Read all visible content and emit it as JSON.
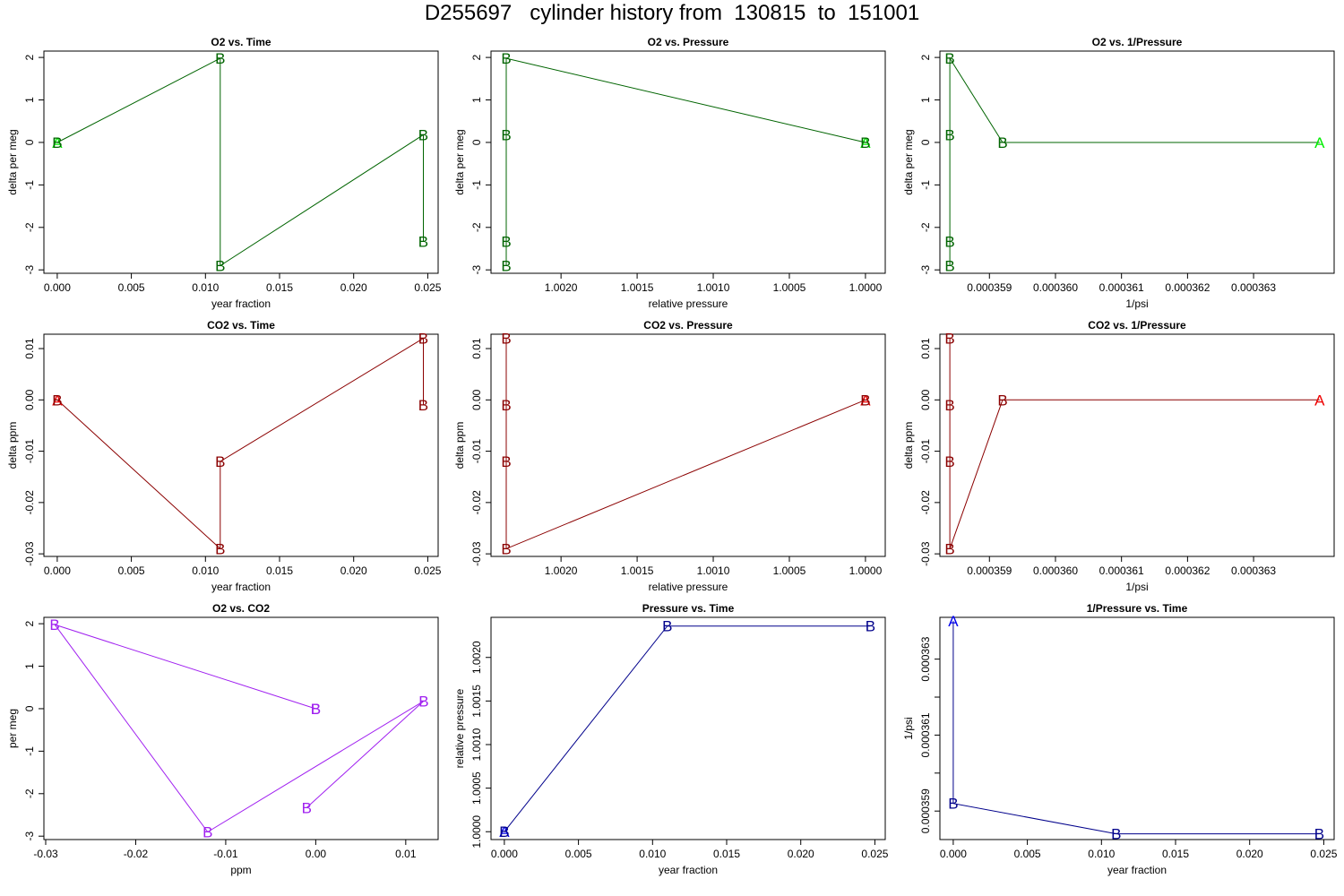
{
  "title": "D255697   cylinder history from  130815  to  151001",
  "colors": {
    "o2": "#006400",
    "o2_first": "#00ee00",
    "co2": "#8b0000",
    "co2_first": "#ee0000",
    "mix": "#a020f0",
    "press": "#00008b",
    "press_first": "#0000ee"
  },
  "chart_data": [
    {
      "type": "line",
      "title": "O2 vs. Time",
      "xlabel": "year fraction",
      "ylabel": "delta per meg",
      "xlim": [
        -0.0009,
        0.0257
      ],
      "ylim": [
        -3.08,
        2.15
      ],
      "xticks": [
        0.0,
        0.005,
        0.01,
        0.015,
        0.02,
        0.025
      ],
      "xticklabels": [
        "0.000",
        "0.005",
        "0.010",
        "0.015",
        "0.020",
        "0.025"
      ],
      "yticks": [
        -3,
        -2,
        -1,
        0,
        1,
        2
      ],
      "yticklabels": [
        "-3",
        "-2",
        "-1",
        "0",
        "1",
        "2"
      ],
      "color": "o2",
      "first_color": "o2_first",
      "points": [
        {
          "x": 0.0,
          "y": 0.0,
          "label": "A"
        },
        {
          "x": 0.0,
          "y": 0.0,
          "label": "B"
        },
        {
          "x": 0.011,
          "y": 1.98,
          "label": "B"
        },
        {
          "x": 0.011,
          "y": -2.9,
          "label": "B"
        },
        {
          "x": 0.0247,
          "y": 0.18,
          "label": "B"
        },
        {
          "x": 0.0247,
          "y": -2.33,
          "label": "B"
        }
      ]
    },
    {
      "type": "line",
      "title": "O2 vs. Pressure",
      "xlabel": "relative pressure",
      "ylabel": "delta per meg",
      "xlim": [
        1.00246,
        0.99987
      ],
      "ylim": [
        -3.08,
        2.15
      ],
      "xticks": [
        1.002,
        1.0015,
        1.001,
        1.0005,
        1.0
      ],
      "xticklabels": [
        "1.0020",
        "1.0015",
        "1.0010",
        "1.0005",
        "1.0000"
      ],
      "yticks": [
        -3,
        -2,
        -1,
        0,
        1,
        2
      ],
      "yticklabels": [
        "-3",
        "-2",
        "-1",
        "0",
        "1",
        "2"
      ],
      "color": "o2",
      "first_color": "o2_first",
      "points": [
        {
          "x": 1.0,
          "y": 0.0,
          "label": "A"
        },
        {
          "x": 1.0,
          "y": 0.0,
          "label": "B"
        },
        {
          "x": 1.00236,
          "y": 1.98,
          "label": "B"
        },
        {
          "x": 1.00236,
          "y": -2.9,
          "label": "B"
        },
        {
          "x": 1.00236,
          "y": 0.18,
          "label": "B"
        },
        {
          "x": 1.00236,
          "y": -2.33,
          "label": "B"
        }
      ]
    },
    {
      "type": "line",
      "title": "O2 vs. 1/Pressure",
      "xlabel": "1/psi",
      "ylabel": "delta per meg",
      "xlim": [
        0.00035825,
        0.00036422
      ],
      "ylim": [
        -3.08,
        2.15
      ],
      "xticks": [
        0.000359,
        0.00036,
        0.000361,
        0.000362,
        0.000363
      ],
      "xticklabels": [
        "0.000359",
        "0.000360",
        "0.000361",
        "0.000362",
        "0.000363"
      ],
      "yticks": [
        -3,
        -2,
        -1,
        0,
        1,
        2
      ],
      "yticklabels": [
        "-3",
        "-2",
        "-1",
        "0",
        "1",
        "2"
      ],
      "color": "o2",
      "first_color": "o2_first",
      "points": [
        {
          "x": 0.000364,
          "y": 0.0,
          "label": "A"
        },
        {
          "x": 0.0003592,
          "y": 0.0,
          "label": "B"
        },
        {
          "x": 0.0003584,
          "y": 1.98,
          "label": "B"
        },
        {
          "x": 0.0003584,
          "y": -2.9,
          "label": "B"
        },
        {
          "x": 0.0003584,
          "y": 0.18,
          "label": "B"
        },
        {
          "x": 0.0003584,
          "y": -2.33,
          "label": "B"
        }
      ]
    },
    {
      "type": "line",
      "title": "CO2 vs. Time",
      "xlabel": "year fraction",
      "ylabel": "delta ppm",
      "xlim": [
        -0.0009,
        0.0257
      ],
      "ylim": [
        -0.0305,
        0.0128
      ],
      "xticks": [
        0.0,
        0.005,
        0.01,
        0.015,
        0.02,
        0.025
      ],
      "xticklabels": [
        "0.000",
        "0.005",
        "0.010",
        "0.015",
        "0.020",
        "0.025"
      ],
      "yticks": [
        -0.03,
        -0.02,
        -0.01,
        0.0,
        0.01
      ],
      "yticklabels": [
        "-0.03",
        "-0.02",
        "-0.01",
        "0.00",
        "0.01"
      ],
      "color": "co2",
      "first_color": "co2_first",
      "points": [
        {
          "x": 0.0,
          "y": 0.0,
          "label": "A"
        },
        {
          "x": 0.0,
          "y": 0.0,
          "label": "B"
        },
        {
          "x": 0.011,
          "y": -0.029,
          "label": "B"
        },
        {
          "x": 0.011,
          "y": -0.012,
          "label": "B"
        },
        {
          "x": 0.0247,
          "y": 0.012,
          "label": "B"
        },
        {
          "x": 0.0247,
          "y": -0.001,
          "label": "B"
        }
      ]
    },
    {
      "type": "line",
      "title": "CO2 vs. Pressure",
      "xlabel": "relative pressure",
      "ylabel": "delta ppm",
      "xlim": [
        1.00246,
        0.99987
      ],
      "ylim": [
        -0.0305,
        0.0128
      ],
      "xticks": [
        1.002,
        1.0015,
        1.001,
        1.0005,
        1.0
      ],
      "xticklabels": [
        "1.0020",
        "1.0015",
        "1.0010",
        "1.0005",
        "1.0000"
      ],
      "yticks": [
        -0.03,
        -0.02,
        -0.01,
        0.0,
        0.01
      ],
      "yticklabels": [
        "-0.03",
        "-0.02",
        "-0.01",
        "0.00",
        "0.01"
      ],
      "color": "co2",
      "first_color": "co2_first",
      "points": [
        {
          "x": 1.0,
          "y": 0.0,
          "label": "A"
        },
        {
          "x": 1.0,
          "y": 0.0,
          "label": "B"
        },
        {
          "x": 1.00236,
          "y": -0.029,
          "label": "B"
        },
        {
          "x": 1.00236,
          "y": -0.012,
          "label": "B"
        },
        {
          "x": 1.00236,
          "y": 0.012,
          "label": "B"
        },
        {
          "x": 1.00236,
          "y": -0.001,
          "label": "B"
        }
      ]
    },
    {
      "type": "line",
      "title": "CO2 vs. 1/Pressure",
      "xlabel": "1/psi",
      "ylabel": "delta ppm",
      "xlim": [
        0.00035825,
        0.00036422
      ],
      "ylim": [
        -0.0305,
        0.0128
      ],
      "xticks": [
        0.000359,
        0.00036,
        0.000361,
        0.000362,
        0.000363
      ],
      "xticklabels": [
        "0.000359",
        "0.000360",
        "0.000361",
        "0.000362",
        "0.000363"
      ],
      "yticks": [
        -0.03,
        -0.02,
        -0.01,
        0.0,
        0.01
      ],
      "yticklabels": [
        "-0.03",
        "-0.02",
        "-0.01",
        "0.00",
        "0.01"
      ],
      "color": "co2",
      "first_color": "co2_first",
      "points": [
        {
          "x": 0.000364,
          "y": 0.0,
          "label": "A"
        },
        {
          "x": 0.0003592,
          "y": 0.0,
          "label": "B"
        },
        {
          "x": 0.0003584,
          "y": -0.029,
          "label": "B"
        },
        {
          "x": 0.0003584,
          "y": -0.012,
          "label": "B"
        },
        {
          "x": 0.0003584,
          "y": 0.012,
          "label": "B"
        },
        {
          "x": 0.0003584,
          "y": -0.001,
          "label": "B"
        }
      ]
    },
    {
      "type": "line",
      "title": "O2 vs. CO2",
      "xlabel": "ppm",
      "ylabel": "per meg",
      "xlim": [
        -0.0302,
        0.0136
      ],
      "ylim": [
        -3.08,
        2.15
      ],
      "xticks": [
        -0.03,
        -0.02,
        -0.01,
        0.0,
        0.01
      ],
      "xticklabels": [
        "-0.03",
        "-0.02",
        "-0.01",
        "0.00",
        "0.01"
      ],
      "yticks": [
        -3,
        -2,
        -1,
        0,
        1,
        2
      ],
      "yticklabels": [
        "-3",
        "-2",
        "-1",
        "0",
        "1",
        "2"
      ],
      "color": "mix",
      "first_color": "mix",
      "points": [
        {
          "x": 0.0,
          "y": 0.0,
          "label": "B"
        },
        {
          "x": 0.0,
          "y": 0.0,
          "label": "B"
        },
        {
          "x": -0.029,
          "y": 1.98,
          "label": "B"
        },
        {
          "x": -0.012,
          "y": -2.9,
          "label": "B"
        },
        {
          "x": 0.012,
          "y": 0.18,
          "label": "B"
        },
        {
          "x": -0.001,
          "y": -2.33,
          "label": "B"
        }
      ]
    },
    {
      "type": "line",
      "title": "Pressure vs. Time",
      "xlabel": "year fraction",
      "ylabel": "relative pressure",
      "xlim": [
        -0.0009,
        0.0257
      ],
      "ylim": [
        0.99991,
        1.00246
      ],
      "xticks": [
        0.0,
        0.005,
        0.01,
        0.015,
        0.02,
        0.025
      ],
      "xticklabels": [
        "0.000",
        "0.005",
        "0.010",
        "0.015",
        "0.020",
        "0.025"
      ],
      "yticks": [
        1.0,
        1.0005,
        1.001,
        1.0015,
        1.002
      ],
      "yticklabels": [
        "1.0000",
        "1.0005",
        "1.0010",
        "1.0015",
        "1.0020"
      ],
      "color": "press",
      "first_color": "press_first",
      "points": [
        {
          "x": 0.0,
          "y": 1.0,
          "label": "A"
        },
        {
          "x": 0.0,
          "y": 1.0,
          "label": "B"
        },
        {
          "x": 0.011,
          "y": 1.00236,
          "label": "B"
        },
        {
          "x": 0.0247,
          "y": 1.00236,
          "label": "B"
        }
      ]
    },
    {
      "type": "line",
      "title": "1/Pressure vs. Time",
      "xlabel": "year fraction",
      "ylabel": "1/psi",
      "xlim": [
        -0.0009,
        0.0257
      ],
      "ylim": [
        0.00035825,
        0.0003641
      ],
      "xticks": [
        0.0,
        0.005,
        0.01,
        0.015,
        0.02,
        0.025
      ],
      "xticklabels": [
        "0.000",
        "0.005",
        "0.010",
        "0.015",
        "0.020",
        "0.025"
      ],
      "yticks": [
        0.000359,
        0.00036,
        0.000361,
        0.000362,
        0.000363
      ],
      "yticklabels": [
        "0.000359",
        "",
        "0.000361",
        "",
        "0.000363"
      ],
      "color": "press",
      "first_color": "press_first",
      "points": [
        {
          "x": 0.0,
          "y": 0.000364,
          "label": "A"
        },
        {
          "x": 0.0,
          "y": 0.0003592,
          "label": "B"
        },
        {
          "x": 0.011,
          "y": 0.0003584,
          "label": "B"
        },
        {
          "x": 0.0247,
          "y": 0.0003584,
          "label": "B"
        }
      ]
    }
  ]
}
